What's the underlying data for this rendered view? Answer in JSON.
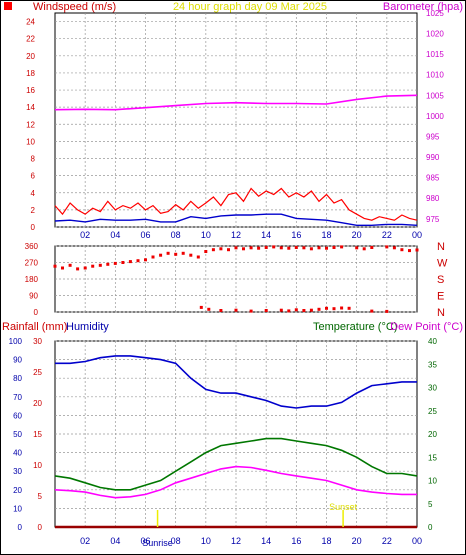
{
  "header": {
    "wind_label": "Windspeed (m/s)",
    "title": "24 hour graph day  09 Mar 2025",
    "baro_label": "Barometer (hpa)"
  },
  "lower_header": {
    "rain_label": "Rainfall (mm)",
    "hum_label": "Humidity",
    "temp_label": "Temperature (°C)",
    "dew_label": "Dew Point (°C)"
  },
  "annotations": {
    "sunrise": "Sunrise",
    "sunset": "Sunset"
  },
  "colors": {
    "wind_gust": "#ff0000",
    "wind_avg": "#0000cc",
    "barometer": "#ff00ff",
    "direction": "#ee0000",
    "humidity": "#0000cc",
    "temperature": "#007700",
    "dewpoint": "#ff00ff",
    "rain": "#990000",
    "sun": "#eeee00"
  },
  "chart_data": [
    {
      "type": "line",
      "name": "wind-barometer",
      "x_ticks": [
        "02",
        "04",
        "06",
        "08",
        "10",
        "12",
        "14",
        "16",
        "18",
        "20",
        "22",
        "00"
      ],
      "left_axis": {
        "label": "Windspeed (m/s)",
        "ylim": [
          0,
          25
        ],
        "ticks": [
          0,
          2,
          4,
          6,
          8,
          10,
          12,
          14,
          16,
          18,
          20,
          22,
          24
        ]
      },
      "right_axis": {
        "label": "Barometer (hpa)",
        "ylim": [
          973,
          1025
        ],
        "ticks": [
          975,
          980,
          985,
          990,
          995,
          1000,
          1005,
          1010,
          1015,
          1020,
          1025
        ]
      },
      "series": [
        {
          "name": "Windspeed gust",
          "axis": "left",
          "x": [
            0,
            0.5,
            1,
            1.5,
            2,
            2.5,
            3,
            3.5,
            4,
            4.5,
            5,
            5.5,
            6,
            6.5,
            7,
            7.5,
            8,
            8.5,
            9,
            9.5,
            10,
            10.5,
            11,
            11.5,
            12,
            12.5,
            13,
            13.5,
            14,
            14.5,
            15,
            15.5,
            16,
            16.5,
            17,
            17.5,
            18,
            18.5,
            19,
            19.5,
            20,
            20.5,
            21,
            21.5,
            22,
            22.5,
            23,
            23.5,
            24
          ],
          "values": [
            2.5,
            1.5,
            2.8,
            2.0,
            1.5,
            2.2,
            1.8,
            3.0,
            2.0,
            2.5,
            2.2,
            2.8,
            2.0,
            2.5,
            1.6,
            1.8,
            2.6,
            2.0,
            3.0,
            2.2,
            2.8,
            3.5,
            2.5,
            3.8,
            4.0,
            3.0,
            4.5,
            3.6,
            4.2,
            3.8,
            4.5,
            3.5,
            4.0,
            3.5,
            4.2,
            3.0,
            3.8,
            2.8,
            3.2,
            2.0,
            1.5,
            1.0,
            0.8,
            1.2,
            1.0,
            0.8,
            1.4,
            1.0,
            0.8
          ]
        },
        {
          "name": "Windspeed average",
          "axis": "left",
          "x": [
            0,
            1,
            2,
            3,
            4,
            5,
            6,
            7,
            8,
            9,
            10,
            11,
            12,
            13,
            14,
            15,
            16,
            17,
            18,
            19,
            20,
            21,
            22,
            23,
            24
          ],
          "values": [
            0.7,
            0.8,
            0.6,
            0.9,
            0.8,
            0.8,
            0.9,
            0.6,
            0.6,
            1.2,
            1.0,
            1.3,
            1.4,
            1.4,
            1.5,
            1.5,
            1.0,
            0.9,
            0.8,
            0.5,
            0.2,
            0.2,
            0.3,
            0.3,
            0.2
          ]
        },
        {
          "name": "Barometer",
          "axis": "right",
          "x": [
            0,
            2,
            4,
            6,
            8,
            10,
            12,
            14,
            16,
            18,
            20,
            22,
            24
          ],
          "values": [
            1001.5,
            1001.6,
            1001.5,
            1002.0,
            1002.5,
            1003.0,
            1003.2,
            1003.0,
            1003.0,
            1002.9,
            1004.0,
            1004.8,
            1005.0
          ]
        }
      ]
    },
    {
      "type": "scatter",
      "name": "wind-direction",
      "x_ticks": [
        "02",
        "04",
        "06",
        "08",
        "10",
        "12",
        "14",
        "16",
        "18",
        "20",
        "22",
        "00"
      ],
      "ylim": [
        0,
        360
      ],
      "ticks": [
        0,
        90,
        180,
        270,
        360
      ],
      "compass": [
        "N",
        "W",
        "S",
        "E",
        "N"
      ],
      "series": [
        {
          "name": "Direction",
          "x": [
            0,
            0.5,
            1,
            1.5,
            2,
            2.5,
            3,
            3.5,
            4,
            4.5,
            5,
            5.5,
            6,
            6.5,
            7,
            7.5,
            8,
            8.5,
            9,
            9.5,
            10,
            10.5,
            11,
            11.5,
            12,
            12.5,
            13,
            13.5,
            14,
            14.5,
            15,
            15.5,
            16,
            16.5,
            17,
            17.5,
            18,
            18.5,
            19,
            20,
            20.5,
            21,
            22,
            22.5,
            23,
            23.5,
            24
          ],
          "values": [
            250,
            240,
            255,
            235,
            240,
            250,
            255,
            260,
            265,
            270,
            275,
            280,
            285,
            300,
            310,
            320,
            315,
            320,
            310,
            300,
            330,
            340,
            345,
            340,
            350,
            345,
            350,
            348,
            352,
            355,
            350,
            348,
            352,
            350,
            345,
            350,
            348,
            352,
            355,
            350,
            345,
            352,
            355,
            350,
            340,
            335,
            338
          ]
        },
        {
          "name": "Direction low",
          "x": [
            9.7,
            10.2,
            11,
            12,
            13,
            14,
            15,
            15.5,
            16,
            16.5,
            17,
            17.5,
            18,
            18.5,
            19,
            19.5,
            21,
            22
          ],
          "values": [
            25,
            15,
            8,
            10,
            5,
            8,
            10,
            6,
            12,
            8,
            10,
            15,
            20,
            18,
            22,
            20,
            5,
            3
          ]
        }
      ]
    },
    {
      "type": "line",
      "name": "temp-humidity-rain",
      "x_ticks": [
        "02",
        "04",
        "06",
        "08",
        "10",
        "12",
        "14",
        "16",
        "18",
        "20",
        "22",
        "00"
      ],
      "rain_axis": {
        "label": "Rainfall (mm)",
        "ylim": [
          0,
          30
        ],
        "ticks": [
          0,
          5,
          10,
          15,
          20,
          25,
          30
        ]
      },
      "humidity_axis": {
        "label": "Humidity",
        "ylim": [
          0,
          100
        ],
        "ticks": [
          0,
          10,
          20,
          30,
          40,
          50,
          60,
          70,
          80,
          90,
          100
        ]
      },
      "temp_axis": {
        "label": "Temperature (°C)",
        "ylim": [
          0,
          40
        ],
        "ticks": [
          0,
          5,
          10,
          15,
          20,
          25,
          30,
          35,
          40
        ]
      },
      "sunrise_hour": 6.8,
      "sunset_hour": 19.1,
      "series": [
        {
          "name": "Humidity",
          "axis": "humidity",
          "x": [
            0,
            1,
            2,
            3,
            4,
            5,
            6,
            7,
            8,
            9,
            10,
            11,
            12,
            13,
            14,
            15,
            16,
            17,
            18,
            19,
            20,
            21,
            22,
            23,
            24
          ],
          "values": [
            88,
            88,
            89,
            91,
            92,
            92,
            91,
            90,
            88,
            80,
            74,
            72,
            72,
            70,
            68,
            65,
            64,
            65,
            65,
            67,
            72,
            76,
            77,
            78,
            78
          ]
        },
        {
          "name": "Temperature",
          "axis": "temp",
          "x": [
            0,
            1,
            2,
            3,
            4,
            5,
            6,
            7,
            8,
            9,
            10,
            11,
            12,
            13,
            14,
            15,
            16,
            17,
            18,
            19,
            20,
            21,
            22,
            23,
            24
          ],
          "values": [
            11,
            10.5,
            9.5,
            8.5,
            8,
            8,
            9,
            10,
            12,
            14,
            16,
            17.5,
            18,
            18.5,
            19,
            19,
            18.5,
            18,
            17.5,
            16.5,
            15,
            13,
            11.5,
            11.5,
            11
          ]
        },
        {
          "name": "Dew Point",
          "axis": "temp",
          "x": [
            0,
            1,
            2,
            3,
            4,
            5,
            6,
            7,
            8,
            9,
            10,
            11,
            12,
            13,
            14,
            15,
            16,
            17,
            18,
            19,
            20,
            21,
            22,
            23,
            24
          ],
          "values": [
            8,
            7.8,
            7.5,
            6.8,
            6.3,
            6.5,
            7,
            8,
            9.5,
            10.5,
            11.5,
            12.5,
            13,
            12.8,
            12.2,
            11.5,
            11,
            10.5,
            10,
            9,
            8,
            7.5,
            7.2,
            7,
            7
          ]
        },
        {
          "name": "Rainfall",
          "axis": "rain",
          "x": [
            0,
            24
          ],
          "values": [
            0,
            0
          ]
        }
      ]
    }
  ]
}
